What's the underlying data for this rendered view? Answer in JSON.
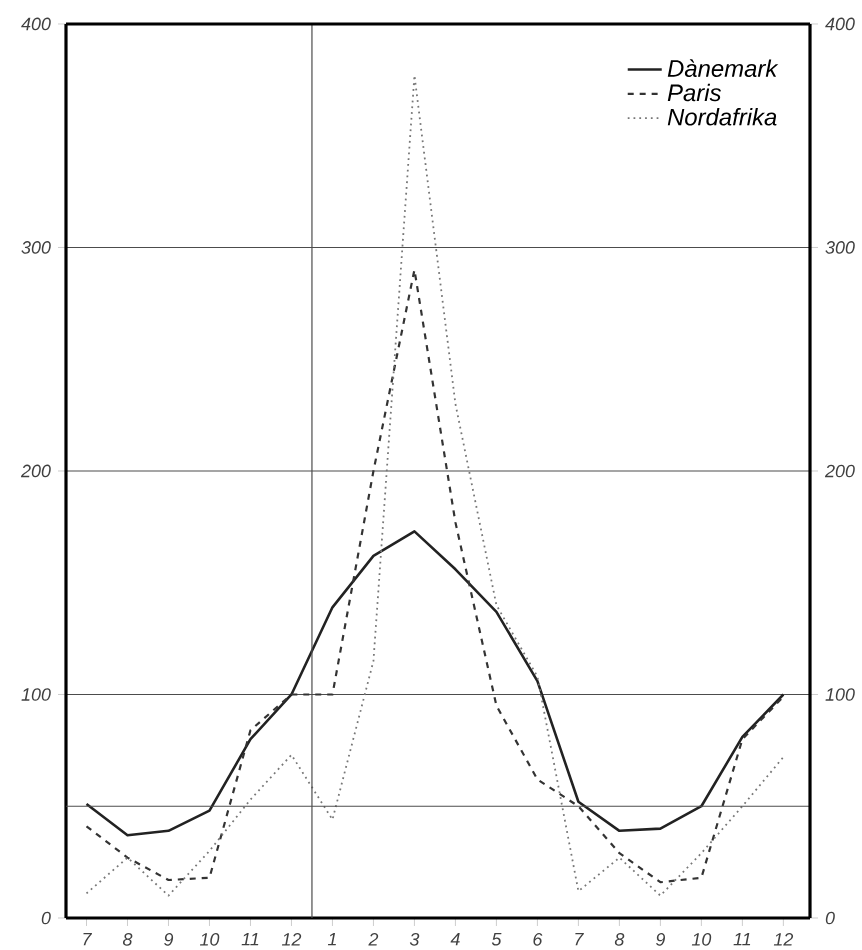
{
  "chart_data": {
    "type": "line",
    "categories": [
      "7",
      "8",
      "9",
      "10",
      "11",
      "12",
      "1",
      "2",
      "3",
      "4",
      "5",
      "6",
      "7",
      "8",
      "9",
      "10",
      "11",
      "12"
    ],
    "series": [
      {
        "name": "Dànemark",
        "color": "#222222",
        "line_style": "solid",
        "values": [
          51,
          37,
          39,
          48,
          80,
          100,
          139,
          162,
          173,
          156,
          137,
          106,
          52,
          39,
          40,
          50,
          81,
          100
        ]
      },
      {
        "name": "Paris",
        "color": "#333333",
        "line_style": "dashed",
        "values": [
          41,
          27,
          17,
          18,
          84,
          100,
          100,
          200,
          290,
          177,
          95,
          62,
          50,
          29,
          16,
          18,
          80,
          99
        ]
      },
      {
        "name": "Nordafrika",
        "color": "#777777",
        "line_style": "dotted",
        "values": [
          11,
          27,
          10,
          30,
          53,
          73,
          44,
          115,
          377,
          230,
          140,
          108,
          12,
          27,
          10,
          29,
          50,
          72
        ]
      }
    ],
    "ylim": [
      0,
      400
    ],
    "yticks": [
      0,
      100,
      200,
      300,
      400
    ],
    "y2lim": [
      0,
      400
    ],
    "y2ticks": [
      0,
      100,
      200,
      300,
      400
    ],
    "grid": "y",
    "legend": "top right",
    "marker": "none",
    "ref_lines": [
      {
        "axis": "y",
        "value": 50
      }
    ]
  }
}
